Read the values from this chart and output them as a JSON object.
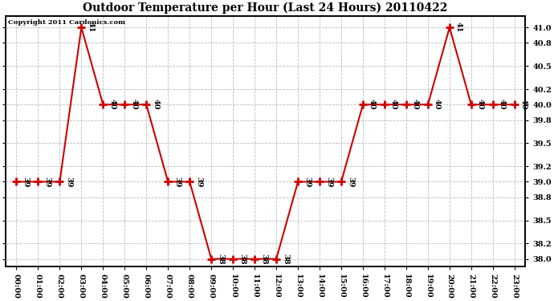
{
  "title": "Outdoor Temperature per Hour (Last 24 Hours) 20110422",
  "copyright": "Copyright 2011 Cardonics.com",
  "hours": [
    0,
    1,
    2,
    3,
    4,
    5,
    6,
    7,
    8,
    9,
    10,
    11,
    12,
    13,
    14,
    15,
    16,
    17,
    18,
    19,
    20,
    21,
    22,
    23
  ],
  "temps": [
    39,
    39,
    39,
    41,
    40,
    40,
    40,
    39,
    39,
    38,
    38,
    38,
    38,
    39,
    39,
    39,
    40,
    40,
    40,
    40,
    41,
    40,
    40,
    40
  ],
  "ylim": [
    37.9,
    41.15
  ],
  "yticks": [
    38.0,
    38.2,
    38.5,
    38.8,
    39.0,
    39.2,
    39.5,
    39.8,
    40.0,
    40.2,
    40.5,
    40.8,
    41.0
  ],
  "line_color": "#cc0000",
  "marker_color": "#cc0000",
  "bg_color": "#ffffff",
  "grid_color": "#bbbbbb",
  "annotation_fontsize": 7,
  "title_fontsize": 10,
  "tick_fontsize": 7
}
